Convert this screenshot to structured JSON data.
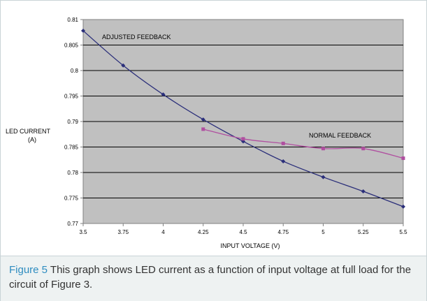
{
  "chart_data": {
    "type": "line",
    "xlabel": "INPUT VOLTAGE (V)",
    "ylabel_lines": [
      "LED CURRENT",
      "(A)"
    ],
    "xlim": [
      3.5,
      5.5
    ],
    "ylim": [
      0.77,
      0.81
    ],
    "x_ticks": [
      "3.5",
      "3.75",
      "4",
      "4.25",
      "4.5",
      "4.75",
      "5",
      "5.25",
      "5.5"
    ],
    "y_ticks": [
      "0.77",
      "0.775",
      "0.78",
      "0.785",
      "0.79",
      "0.795",
      "0.8",
      "0.805",
      "0.81"
    ],
    "grid": true,
    "series": [
      {
        "name": "ADJUSTED FEEDBACK",
        "color": "#2b2f7a",
        "marker": "diamond",
        "x": [
          3.5,
          3.75,
          4,
          4.25,
          4.5,
          4.75,
          5,
          5.25,
          5.5
        ],
        "y": [
          0.8078,
          0.801,
          0.7953,
          0.7904,
          0.7861,
          0.7822,
          0.7791,
          0.7763,
          0.7733
        ]
      },
      {
        "name": "NORMAL FEEDBACK",
        "color": "#b04fa0",
        "marker": "square",
        "x": [
          4.25,
          4.5,
          4.75,
          5,
          5.25,
          5.5
        ],
        "y": [
          0.7885,
          0.7866,
          0.7857,
          0.7847,
          0.7847,
          0.7828
        ]
      }
    ]
  },
  "colors": {
    "plot_background": "#c0c0c0",
    "gridline": "#000000",
    "caption_label": "#2f8dc0"
  },
  "caption": {
    "label": "Figure 5",
    "text": " This graph shows LED current as a function of input voltage at full load for the circuit of Figure 3."
  }
}
